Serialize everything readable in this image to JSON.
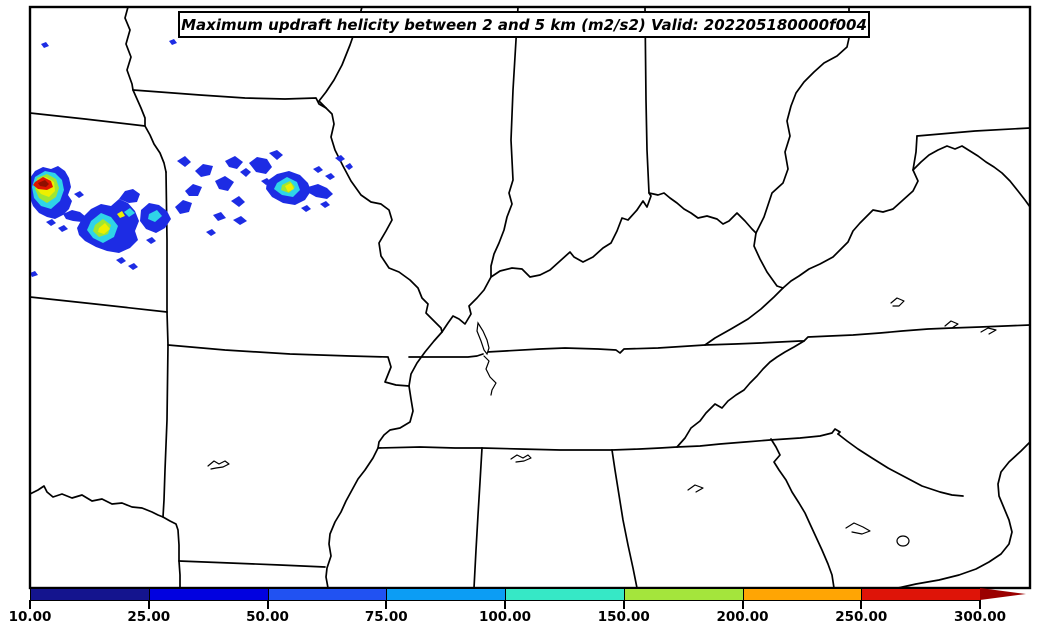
{
  "plot": {
    "title": "Maximum updraft helicity between 2 and 5 km (m2/s2) Valid: 202205180000f004"
  },
  "colorbar": {
    "tick_labels": [
      "10.00",
      "25.00",
      "50.00",
      "75.00",
      "100.00",
      "150.00",
      "200.00",
      "250.00",
      "300.00"
    ],
    "levels": [
      10,
      25,
      50,
      75,
      100,
      150,
      200,
      250,
      300
    ],
    "segment_colors": [
      "#14148E",
      "#0101E0",
      "#2152F2",
      "#0C9DF4",
      "#36E8C6",
      "#A4E53C",
      "#FFA504",
      "#DE1408"
    ],
    "overflow_arrow_color": "#9B0000"
  },
  "map": {
    "background_color": "#FFFFFF",
    "boundary_color": "#000000",
    "swath_palette": {
      "blue": "#1D2CE4",
      "cyan": "#2FD4E8",
      "green": "#A0E632",
      "yellow": "#EEF000",
      "red": "#E01400",
      "dark_red": "#8F0F00"
    }
  }
}
